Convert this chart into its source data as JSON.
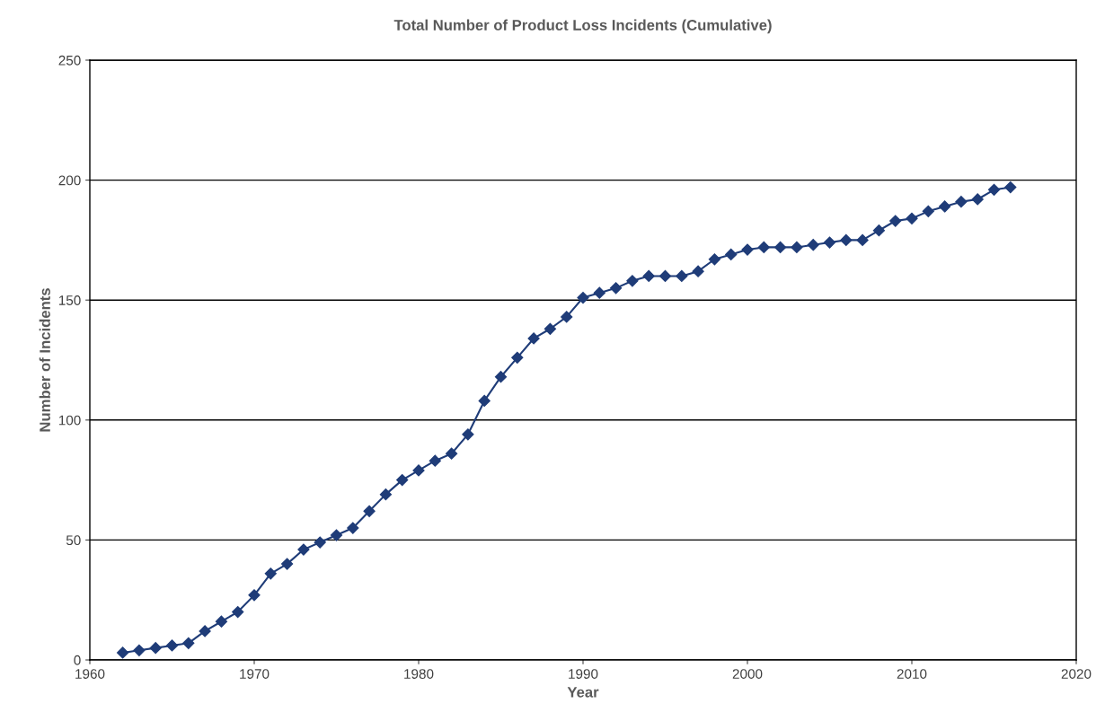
{
  "chart_data": {
    "type": "line",
    "title": "Total Number of Product Loss Incidents (Cumulative)",
    "xlabel": "Year",
    "ylabel": "Number of Incidents",
    "x": [
      1962,
      1963,
      1964,
      1965,
      1966,
      1967,
      1968,
      1969,
      1970,
      1971,
      1972,
      1973,
      1974,
      1975,
      1976,
      1977,
      1978,
      1979,
      1980,
      1981,
      1982,
      1983,
      1984,
      1985,
      1986,
      1987,
      1988,
      1989,
      1990,
      1991,
      1992,
      1993,
      1994,
      1995,
      1996,
      1997,
      1998,
      1999,
      2000,
      2001,
      2002,
      2003,
      2004,
      2005,
      2006,
      2007,
      2008,
      2009,
      2010,
      2011,
      2012,
      2013,
      2014,
      2015,
      2016
    ],
    "series": [
      {
        "color": "#1f3c78",
        "values": [
          3,
          4,
          5,
          6,
          7,
          12,
          16,
          20,
          27,
          36,
          40,
          46,
          49,
          52,
          55,
          62,
          69,
          75,
          79,
          83,
          86,
          94,
          108,
          118,
          126,
          134,
          138,
          143,
          151,
          153,
          155,
          158,
          160,
          160,
          160,
          162,
          167,
          169,
          171,
          172,
          172,
          172,
          173,
          174,
          175,
          175,
          179,
          183,
          184,
          187,
          189,
          191,
          192,
          196,
          197
        ]
      }
    ],
    "xlim": [
      1960,
      2020
    ],
    "xticks": [
      1960,
      1970,
      1980,
      1990,
      2000,
      2010,
      2020
    ],
    "ylim": [
      0,
      250
    ],
    "yticks": [
      0,
      50,
      100,
      150,
      200,
      250
    ],
    "grid": "y",
    "marker": "diamond",
    "line_style": "solid"
  }
}
